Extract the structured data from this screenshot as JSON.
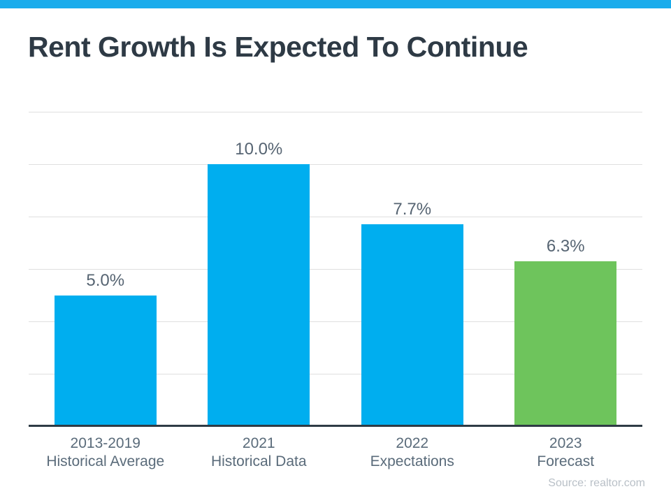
{
  "header": {
    "title": "Rent Growth Is Expected To Continue"
  },
  "chart_data": {
    "type": "bar",
    "title": "Rent Growth Is Expected To Continue",
    "categories": [
      [
        "2013-2019",
        "Historical Average"
      ],
      [
        "2021",
        "Historical Data"
      ],
      [
        "2022",
        "Expectations"
      ],
      [
        "2023",
        "Forecast"
      ]
    ],
    "values": [
      5.0,
      10.0,
      7.7,
      6.3
    ],
    "value_labels": [
      "5.0%",
      "10.0%",
      "7.7%",
      "6.3%"
    ],
    "bar_colors": [
      "#00AEEF",
      "#00AEEF",
      "#00AEEF",
      "#6EC45C"
    ],
    "xlabel": "",
    "ylabel": "",
    "ylim": [
      0,
      12
    ],
    "gridline_step": 2,
    "grid": "horizontal-only",
    "legend": "none",
    "y_tick_labels_visible": false,
    "source": "Source: realtor.com"
  },
  "colors": {
    "accent_stripe": "#1AACEC",
    "bar_blue": "#00AEEF",
    "bar_green": "#6EC45C",
    "title_text": "#2E3A45",
    "grid_line": "#DFDFDF",
    "axis_line": "#2F3B45",
    "value_label_text": "#566472",
    "category_label_text": "#5A6B7A",
    "source_text": "#B9C0C7"
  }
}
